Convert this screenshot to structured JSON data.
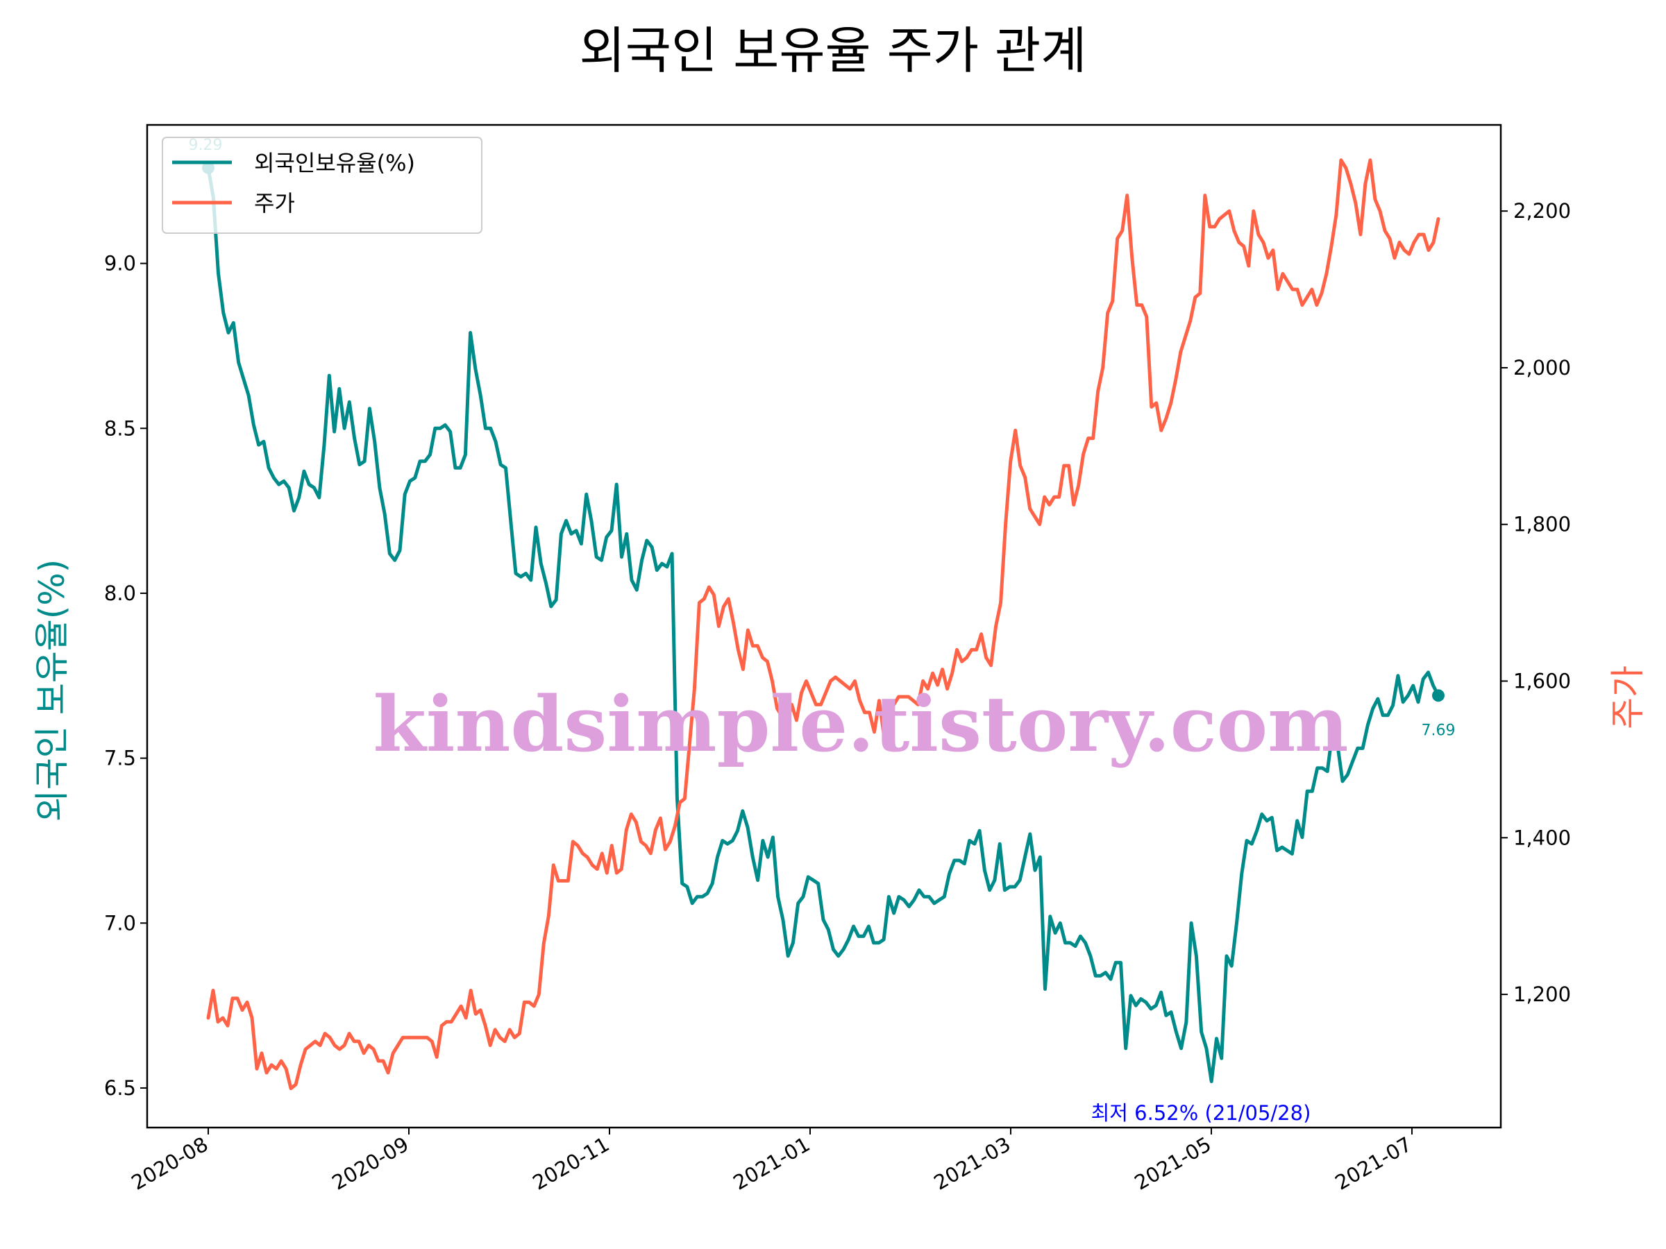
{
  "chart_data": {
    "type": "line",
    "title": "외국인 보유율 주가 관계",
    "ylabel": "외국인 보유율(%)",
    "ylabel_right": "주가",
    "ylim": [
      6.38,
      9.42
    ],
    "ylim_right": [
      1030,
      2310
    ],
    "y_ticks": [
      "6.5",
      "7.0",
      "7.5",
      "8.0",
      "8.5",
      "9.0"
    ],
    "y_ticks_right": [
      "1,200",
      "1,400",
      "1,600",
      "1,800",
      "2,000",
      "2,200"
    ],
    "x_ticks": [
      "2020-08",
      "2020-09",
      "2020-11",
      "2021-01",
      "2021-03",
      "2021-05",
      "2021-07"
    ],
    "legend_position": "upper left",
    "grid": false,
    "colors": {
      "ratio": "#008b8b",
      "price": "#ff6347",
      "min_annotation": "#0000ff",
      "watermark": "#dda0dd"
    },
    "series": [
      {
        "name": "외국인보유율(%)",
        "axis": "left",
        "values": [
          9.29,
          9.2,
          8.97,
          8.85,
          8.79,
          8.82,
          8.7,
          8.65,
          8.6,
          8.51,
          8.45,
          8.46,
          8.38,
          8.35,
          8.33,
          8.34,
          8.32,
          8.25,
          8.29,
          8.37,
          8.33,
          8.32,
          8.29,
          8.45,
          8.66,
          8.49,
          8.62,
          8.5,
          8.58,
          8.47,
          8.39,
          8.4,
          8.56,
          8.46,
          8.32,
          8.24,
          8.12,
          8.1,
          8.13,
          8.3,
          8.34,
          8.35,
          8.4,
          8.4,
          8.42,
          8.5,
          8.5,
          8.51,
          8.49,
          8.38,
          8.38,
          8.42,
          8.79,
          8.68,
          8.6,
          8.5,
          8.5,
          8.46,
          8.39,
          8.38,
          8.22,
          8.06,
          8.05,
          8.06,
          8.04,
          8.2,
          8.09,
          8.03,
          7.96,
          7.98,
          8.18,
          8.22,
          8.18,
          8.19,
          8.15,
          8.3,
          8.22,
          8.11,
          8.1,
          8.17,
          8.19,
          8.33,
          8.11,
          8.18,
          8.04,
          8.01,
          8.1,
          8.16,
          8.14,
          8.07,
          8.09,
          8.08,
          8.12,
          7.38,
          7.12,
          7.11,
          7.06,
          7.08,
          7.08,
          7.09,
          7.12,
          7.2,
          7.25,
          7.24,
          7.25,
          7.28,
          7.34,
          7.29,
          7.2,
          7.13,
          7.25,
          7.2,
          7.26,
          7.08,
          7.01,
          6.9,
          6.94,
          7.06,
          7.08,
          7.14,
          7.13,
          7.12,
          7.01,
          6.98,
          6.92,
          6.9,
          6.92,
          6.95,
          6.99,
          6.96,
          6.96,
          6.99,
          6.94,
          6.94,
          6.95,
          7.08,
          7.03,
          7.08,
          7.07,
          7.05,
          7.07,
          7.1,
          7.08,
          7.08,
          7.06,
          7.07,
          7.08,
          7.15,
          7.19,
          7.19,
          7.18,
          7.25,
          7.24,
          7.28,
          7.16,
          7.1,
          7.13,
          7.24,
          7.1,
          7.11,
          7.11,
          7.13,
          7.2,
          7.27,
          7.16,
          7.2,
          6.8,
          7.02,
          6.97,
          7.0,
          6.94,
          6.94,
          6.93,
          6.96,
          6.94,
          6.9,
          6.84,
          6.84,
          6.85,
          6.83,
          6.88,
          6.88,
          6.62,
          6.78,
          6.75,
          6.77,
          6.76,
          6.74,
          6.75,
          6.79,
          6.72,
          6.73,
          6.67,
          6.62,
          6.7,
          7.0,
          6.9,
          6.67,
          6.62,
          6.52,
          6.65,
          6.59,
          6.9,
          6.87,
          7.0,
          7.15,
          7.25,
          7.24,
          7.28,
          7.33,
          7.31,
          7.32,
          7.22,
          7.23,
          7.22,
          7.21,
          7.31,
          7.26,
          7.4,
          7.4,
          7.47,
          7.47,
          7.46,
          7.58,
          7.54,
          7.43,
          7.45,
          7.49,
          7.53,
          7.53,
          7.6,
          7.65,
          7.68,
          7.63,
          7.63,
          7.66,
          7.75,
          7.67,
          7.69,
          7.72,
          7.67,
          7.74,
          7.76,
          7.72,
          7.69
        ]
      },
      {
        "name": "주가",
        "axis": "right",
        "values": [
          1170,
          1205,
          1165,
          1170,
          1160,
          1195,
          1195,
          1180,
          1190,
          1170,
          1105,
          1125,
          1100,
          1110,
          1105,
          1115,
          1105,
          1080,
          1085,
          1110,
          1130,
          1135,
          1140,
          1135,
          1150,
          1145,
          1135,
          1130,
          1135,
          1150,
          1140,
          1140,
          1125,
          1135,
          1130,
          1115,
          1115,
          1100,
          1125,
          1135,
          1145,
          1145,
          1145,
          1145,
          1145,
          1145,
          1140,
          1120,
          1160,
          1165,
          1165,
          1175,
          1185,
          1170,
          1205,
          1175,
          1180,
          1160,
          1135,
          1155,
          1145,
          1140,
          1155,
          1145,
          1150,
          1190,
          1190,
          1185,
          1200,
          1265,
          1300,
          1365,
          1345,
          1345,
          1345,
          1395,
          1390,
          1380,
          1375,
          1365,
          1360,
          1380,
          1355,
          1390,
          1355,
          1360,
          1410,
          1430,
          1420,
          1395,
          1390,
          1380,
          1410,
          1425,
          1385,
          1395,
          1415,
          1445,
          1450,
          1520,
          1590,
          1700,
          1705,
          1720,
          1710,
          1670,
          1695,
          1705,
          1675,
          1640,
          1615,
          1665,
          1645,
          1645,
          1630,
          1625,
          1600,
          1565,
          1555,
          1545,
          1570,
          1550,
          1585,
          1600,
          1585,
          1570,
          1570,
          1585,
          1600,
          1605,
          1600,
          1595,
          1590,
          1600,
          1575,
          1560,
          1560,
          1535,
          1575,
          1530,
          1560,
          1570,
          1580,
          1580,
          1580,
          1575,
          1570,
          1600,
          1590,
          1610,
          1595,
          1615,
          1590,
          1610,
          1640,
          1625,
          1630,
          1640,
          1640,
          1660,
          1630,
          1620,
          1670,
          1700,
          1800,
          1880,
          1920,
          1875,
          1860,
          1820,
          1810,
          1800,
          1835,
          1825,
          1835,
          1835,
          1875,
          1875,
          1825,
          1850,
          1890,
          1910,
          1910,
          1970,
          2000,
          2070,
          2085,
          2165,
          2175,
          2220,
          2140,
          2080,
          2080,
          2065,
          1950,
          1955,
          1920,
          1935,
          1955,
          1985,
          2020,
          2040,
          2060,
          2090,
          2095,
          2220,
          2180,
          2180,
          2190,
          2195,
          2200,
          2175,
          2160,
          2155,
          2130,
          2200,
          2170,
          2160,
          2140,
          2150,
          2100,
          2120,
          2110,
          2100,
          2100,
          2080,
          2090,
          2100,
          2080,
          2095,
          2120,
          2155,
          2195,
          2265,
          2255,
          2235,
          2210,
          2170,
          2235,
          2265,
          2215,
          2200,
          2175,
          2165,
          2140,
          2160,
          2150,
          2145,
          2160,
          2170,
          2170,
          2150,
          2160,
          2190
        ]
      }
    ],
    "annotations": {
      "start_value": "9.29",
      "end_value": "7.69",
      "min_text": "최저 6.52% (21/05/28)",
      "min_index": 210
    }
  },
  "watermark": "kindsimple.tistory.com"
}
